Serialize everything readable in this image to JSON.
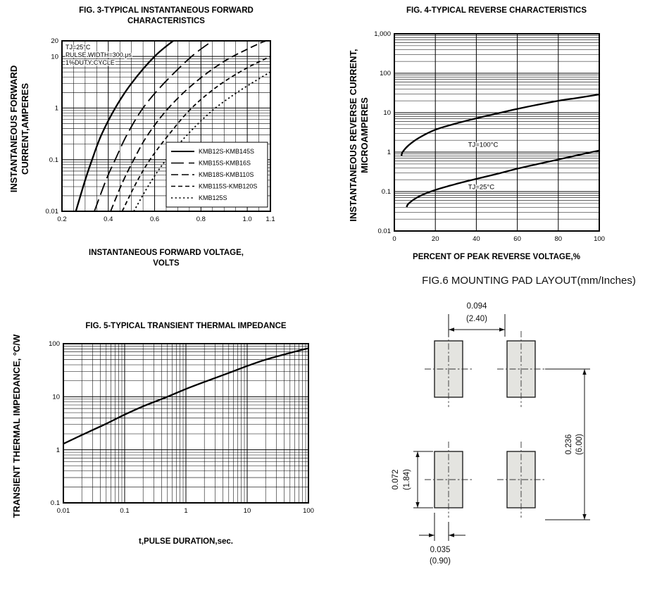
{
  "page": {
    "background": "#ffffff"
  },
  "chart_data": [
    {
      "id": "fig3",
      "type": "line",
      "title": "FIG. 3-TYPICAL INSTANTANEOUS FORWARD CHARACTERISTICS",
      "xlabel": "INSTANTANEOUS FORWARD VOLTAGE, VOLTS",
      "ylabel": "INSTANTANEOUS FORWARD CURRENT,AMPERES",
      "x_scale": "linear",
      "y_scale": "log",
      "xlim": [
        0.2,
        1.1
      ],
      "ylim": [
        0.01,
        20
      ],
      "x_ticks": [
        0.2,
        0.4,
        0.6,
        0.8,
        1.0,
        1.1
      ],
      "x_tick_labels": [
        "0.2",
        "0.4",
        "0.6",
        "0.8",
        "1.0",
        "1.1"
      ],
      "y_ticks": [
        0.01,
        0.1,
        1,
        10,
        20
      ],
      "y_tick_labels": [
        "0.01",
        "0.1",
        "1",
        "10",
        "20"
      ],
      "grid": true,
      "legend_position": "inside-bottom-right",
      "annotations": [
        "TJ=25°C",
        "PULSE WIDTH=300 μs",
        "1%DUTY CYCLE"
      ],
      "series": [
        {
          "name": "KMB12S-KMB145S",
          "style": "solid",
          "points": [
            [
              0.26,
              0.01
            ],
            [
              0.3,
              0.04
            ],
            [
              0.33,
              0.1
            ],
            [
              0.37,
              0.3
            ],
            [
              0.43,
              1.0
            ],
            [
              0.5,
              3.0
            ],
            [
              0.6,
              10
            ],
            [
              0.68,
              20
            ]
          ]
        },
        {
          "name": "KMB15S-KMB16S",
          "style": "long-dash",
          "points": [
            [
              0.34,
              0.01
            ],
            [
              0.39,
              0.04
            ],
            [
              0.43,
              0.1
            ],
            [
              0.48,
              0.3
            ],
            [
              0.55,
              1.0
            ],
            [
              0.64,
              3.0
            ],
            [
              0.76,
              10
            ],
            [
              0.85,
              20
            ]
          ]
        },
        {
          "name": "KMB18S-KMB110S",
          "style": "dash",
          "points": [
            [
              0.41,
              0.01
            ],
            [
              0.46,
              0.035
            ],
            [
              0.51,
              0.1
            ],
            [
              0.57,
              0.3
            ],
            [
              0.66,
              1.0
            ],
            [
              0.77,
              3.0
            ],
            [
              0.9,
              8.0
            ],
            [
              1.03,
              16
            ],
            [
              1.08,
              20
            ]
          ]
        },
        {
          "name": "KMB115S-KMB120S",
          "style": "short-dash",
          "points": [
            [
              0.46,
              0.01
            ],
            [
              0.52,
              0.035
            ],
            [
              0.58,
              0.1
            ],
            [
              0.66,
              0.3
            ],
            [
              0.76,
              1.0
            ],
            [
              0.88,
              2.8
            ],
            [
              1.0,
              6.0
            ],
            [
              1.1,
              10
            ]
          ]
        },
        {
          "name": "KMB125S",
          "style": "dot",
          "points": [
            [
              0.51,
              0.01
            ],
            [
              0.58,
              0.035
            ],
            [
              0.65,
              0.1
            ],
            [
              0.74,
              0.3
            ],
            [
              0.85,
              0.9
            ],
            [
              0.97,
              2.2
            ],
            [
              1.1,
              5.0
            ]
          ]
        }
      ]
    },
    {
      "id": "fig4",
      "type": "line",
      "title": "FIG. 4-TYPICAL REVERSE CHARACTERISTICS",
      "xlabel": "PERCENT OF PEAK REVERSE VOLTAGE,%",
      "ylabel": "INSTANTANEOUS REVERSE CURRENT, MICROAMPERES",
      "x_scale": "linear",
      "y_scale": "log",
      "xlim": [
        0,
        100
      ],
      "ylim": [
        0.01,
        1000
      ],
      "x_ticks": [
        0,
        20,
        40,
        60,
        80,
        100
      ],
      "x_tick_labels": [
        "0",
        "20",
        "40",
        "60",
        "80",
        "100"
      ],
      "y_ticks": [
        0.01,
        0.1,
        1,
        10,
        100,
        1000
      ],
      "y_tick_labels": [
        "0.01",
        "0.1",
        "1",
        "10",
        "100",
        "1,000"
      ],
      "grid": true,
      "series": [
        {
          "name": "TJ=100°C",
          "style": "solid",
          "label": "TJ=100°C",
          "label_pos": [
            36,
            1.35
          ],
          "points": [
            [
              3.5,
              0.8
            ],
            [
              4,
              1.0
            ],
            [
              7,
              1.5
            ],
            [
              12,
              2.3
            ],
            [
              20,
              3.7
            ],
            [
              30,
              5.3
            ],
            [
              40,
              7.2
            ],
            [
              50,
              9.5
            ],
            [
              60,
              12.5
            ],
            [
              70,
              16
            ],
            [
              80,
              20
            ],
            [
              90,
              24
            ],
            [
              100,
              29
            ]
          ]
        },
        {
          "name": "TJ=25°C",
          "style": "solid",
          "label": "TJ=25°C",
          "label_pos": [
            36,
            0.115
          ],
          "points": [
            [
              6,
              0.04
            ],
            [
              7,
              0.05
            ],
            [
              12,
              0.075
            ],
            [
              20,
              0.11
            ],
            [
              30,
              0.155
            ],
            [
              40,
              0.21
            ],
            [
              50,
              0.28
            ],
            [
              60,
              0.38
            ],
            [
              70,
              0.5
            ],
            [
              80,
              0.65
            ],
            [
              90,
              0.85
            ],
            [
              100,
              1.1
            ]
          ]
        }
      ]
    },
    {
      "id": "fig5",
      "type": "line",
      "title": "FIG. 5-TYPICAL TRANSIENT THERMAL IMPEDANCE",
      "xlabel": "t,PULSE DURATION,sec.",
      "ylabel": "TRANSIENT THERMAL IMPEDANCE, °C/W",
      "x_scale": "log",
      "y_scale": "log",
      "xlim": [
        0.01,
        100
      ],
      "ylim": [
        0.1,
        100
      ],
      "x_ticks": [
        0.01,
        0.1,
        1,
        10,
        100
      ],
      "x_tick_labels": [
        "0.01",
        "0.1",
        "1",
        "10",
        "100"
      ],
      "y_ticks": [
        0.1,
        1,
        10,
        100
      ],
      "y_tick_labels": [
        "0.1",
        "1",
        "10",
        "100"
      ],
      "grid": true,
      "series": [
        {
          "name": "transient-thermal-impedance",
          "style": "solid",
          "points": [
            [
              0.01,
              1.3
            ],
            [
              0.02,
              1.9
            ],
            [
              0.05,
              3.1
            ],
            [
              0.1,
              4.6
            ],
            [
              0.2,
              6.6
            ],
            [
              0.5,
              10
            ],
            [
              1,
              14
            ],
            [
              2,
              19
            ],
            [
              5,
              28
            ],
            [
              10,
              38
            ],
            [
              20,
              50
            ],
            [
              50,
              67
            ],
            [
              100,
              82
            ]
          ]
        }
      ]
    }
  ],
  "fig6": {
    "title": "FIG.6 MOUNTING PAD LAYOUT(mm/Inches)",
    "pad_fill": "#e4e4e0",
    "dims": {
      "top": {
        "inches": "0.094",
        "mm": "(2.40)"
      },
      "right": {
        "inches": "0.236",
        "mm": "(6.00)"
      },
      "left": {
        "inches": "0.072",
        "mm": "(1.84)"
      },
      "bottom": {
        "inches": "0.035",
        "mm": "(0.90)"
      }
    }
  }
}
